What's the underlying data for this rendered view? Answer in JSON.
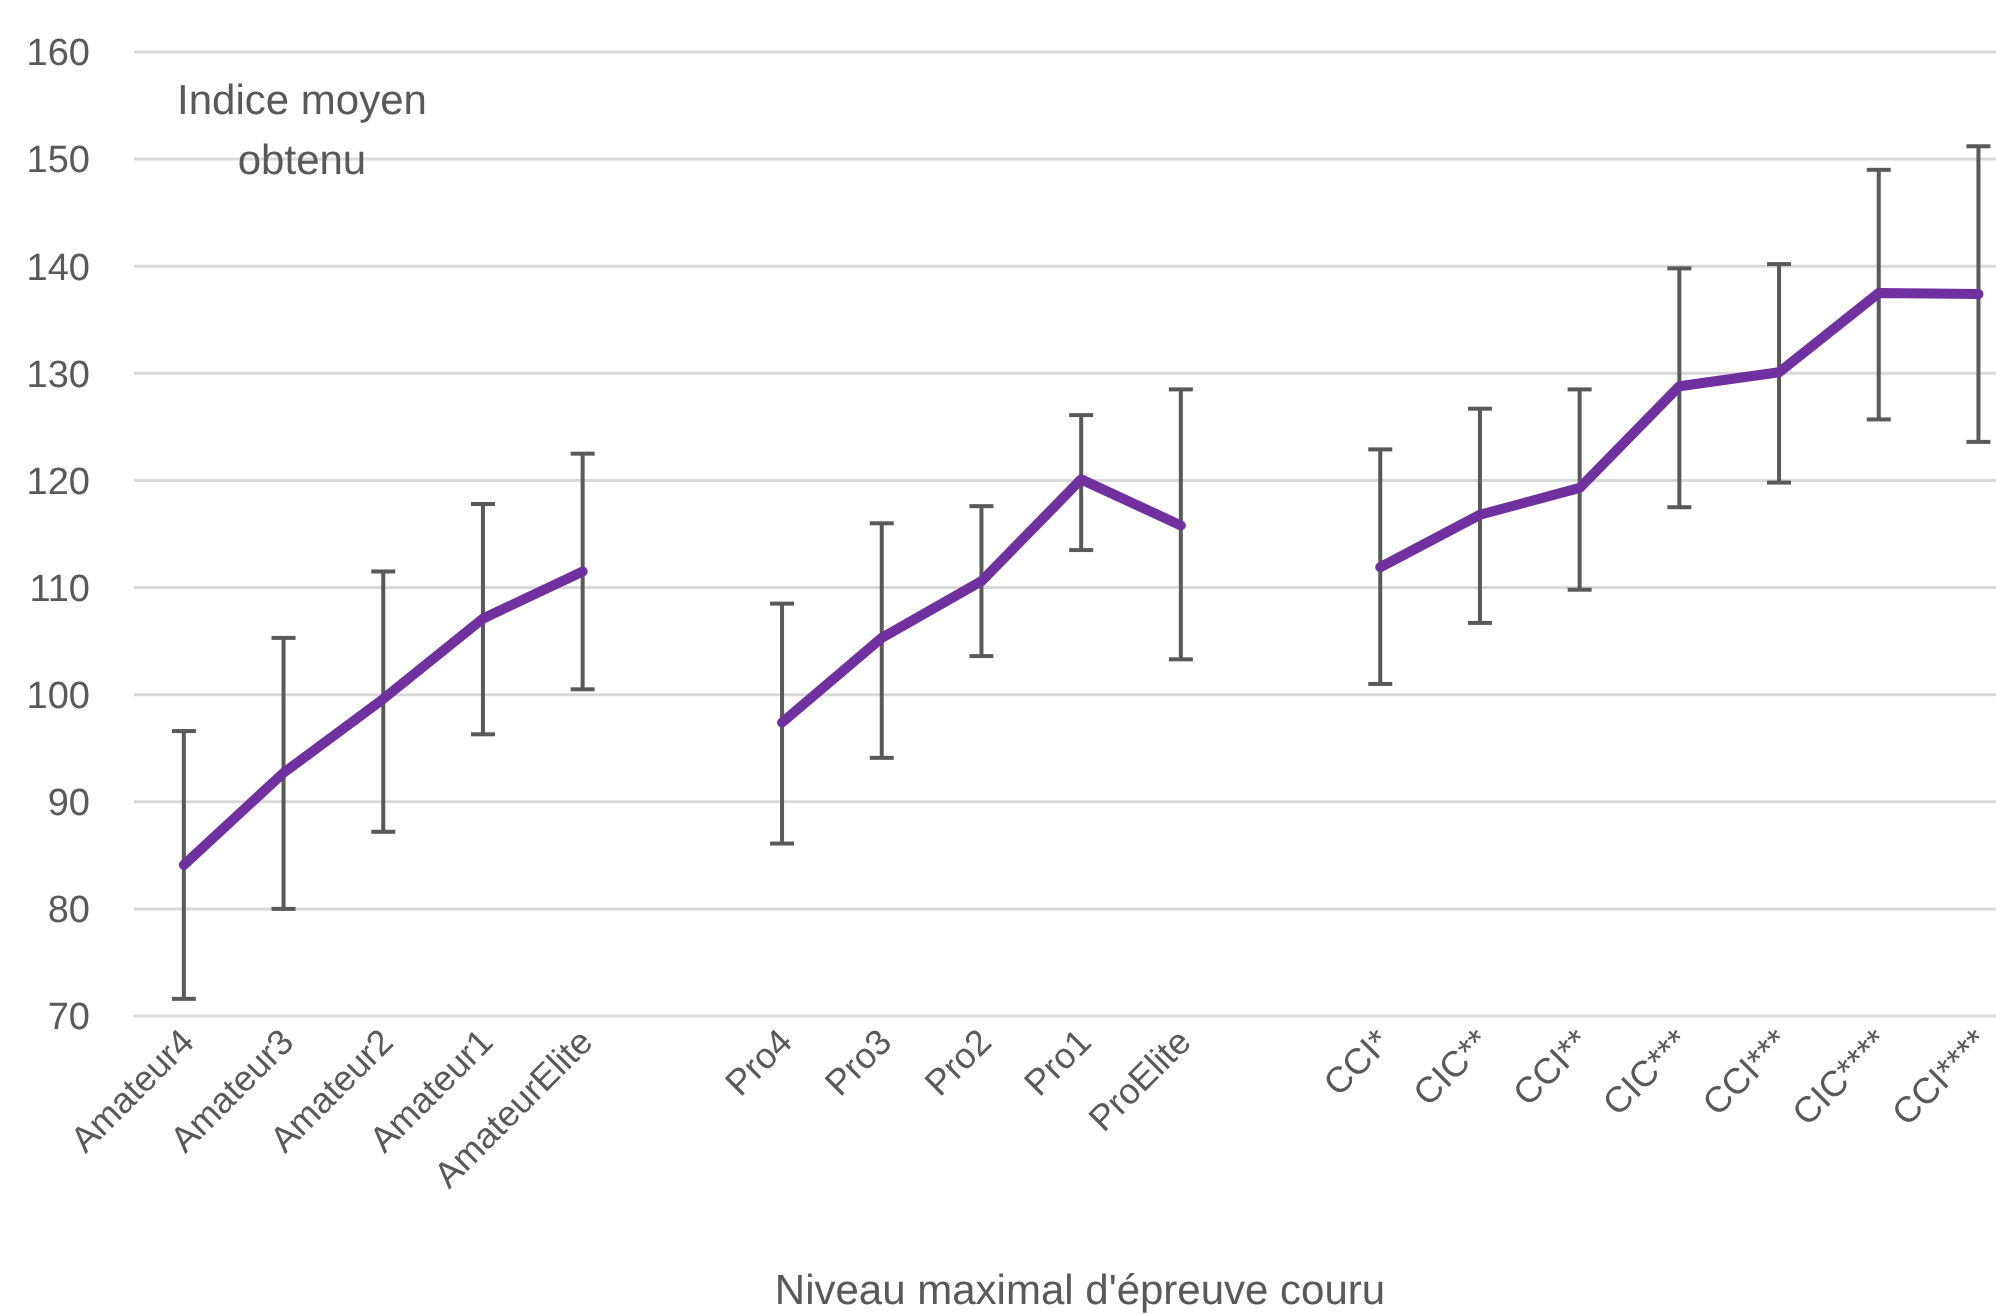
{
  "chart_data": {
    "type": "line",
    "ylabel": "Indice moyen obtenu",
    "xlabel": "Niveau maximal d'épreuve couru",
    "categories": [
      "Amateur4",
      "Amateur3",
      "Amateur2",
      "Amateur1",
      "AmateurElite",
      null,
      "Pro4",
      "Pro3",
      "Pro2",
      "Pro1",
      "ProElite",
      null,
      "CCI*",
      "CIC**",
      "CCI**",
      "CIC***",
      "CCI***",
      "CIC****",
      "CCI****"
    ],
    "series": [
      {
        "color": "#7030a0",
        "values": [
          84.1,
          92.7,
          99.6,
          107.1,
          111.5,
          null,
          97.4,
          105.3,
          110.6,
          120.1,
          115.8,
          null,
          111.9,
          116.8,
          119.3,
          128.8,
          130.1,
          137.5,
          137.4
        ],
        "errors": [
          [
            71.6,
            96.6
          ],
          [
            80.0,
            105.3
          ],
          [
            87.2,
            111.5
          ],
          [
            96.3,
            117.8
          ],
          [
            100.5,
            122.5
          ],
          null,
          [
            86.1,
            108.5
          ],
          [
            94.1,
            116.0
          ],
          [
            103.6,
            117.6
          ],
          [
            113.5,
            126.1
          ],
          [
            103.3,
            128.5
          ],
          null,
          [
            101.0,
            122.9
          ],
          [
            106.7,
            126.7
          ],
          [
            109.8,
            128.5
          ],
          [
            117.5,
            139.8
          ],
          [
            119.8,
            140.2
          ],
          [
            125.7,
            149.0
          ],
          [
            123.6,
            151.2
          ]
        ]
      }
    ],
    "ylim": [
      70,
      160
    ],
    "yticks": [
      70,
      80,
      90,
      100,
      110,
      120,
      130,
      140,
      150,
      160
    ],
    "grid": "y",
    "marker": "none",
    "line_style": "solid"
  }
}
